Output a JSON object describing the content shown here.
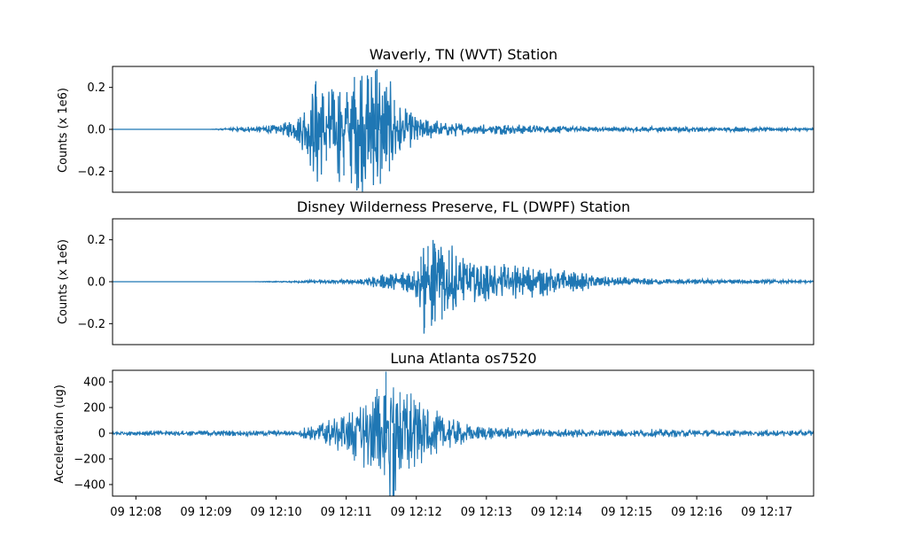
{
  "colors": {
    "trace": "#1f77b4",
    "axes": "#000000",
    "background": "#ffffff"
  },
  "chart_data": [
    {
      "type": "line",
      "title": "Waverly, TN (WVT) Station",
      "ylabel": "Counts (x 1e6)",
      "xlabel": "",
      "ylim": [
        -0.3,
        0.3
      ],
      "yticks": [
        -0.2,
        0.0,
        0.2
      ],
      "ytick_labels": [
        "−0.2",
        "0.0",
        "0.2"
      ],
      "x_unit": "minutes after 12:07:40",
      "x": [
        0.0,
        1.38,
        2.4,
        2.5,
        2.65,
        2.9,
        3.05,
        3.15,
        3.3,
        3.45,
        3.55,
        3.65,
        3.75,
        3.82,
        3.88,
        3.95,
        4.02,
        4.1,
        4.2,
        4.35,
        4.5,
        4.75,
        5.2,
        5.6,
        6.2,
        7.0,
        8.0,
        9.0,
        10.0
      ],
      "values": [
        0.0,
        0.0,
        0.02,
        -0.03,
        0.05,
        0.23,
        -0.15,
        0.18,
        -0.22,
        0.25,
        -0.25,
        0.24,
        0.28,
        -0.26,
        0.18,
        -0.2,
        0.14,
        -0.1,
        0.08,
        -0.05,
        0.04,
        0.03,
        -0.02,
        0.02,
        0.015,
        -0.01,
        0.01,
        0.008,
        0.005
      ],
      "series": [
        {
          "name": "",
          "color": "#1f77b4"
        }
      ]
    },
    {
      "type": "line",
      "title": "Disney Wilderness Preserve, FL (DWPF) Station",
      "ylabel": "Counts (x 1e6)",
      "xlabel": "",
      "ylim": [
        -0.3,
        0.3
      ],
      "yticks": [
        -0.2,
        0.0,
        0.2
      ],
      "ytick_labels": [
        "−0.2",
        "0.0",
        "0.2"
      ],
      "x_unit": "minutes after 12:07:40",
      "x": [
        0.0,
        2.0,
        3.5,
        4.5,
        4.3,
        4.4,
        4.45,
        4.5,
        4.55,
        4.6,
        4.7,
        4.8,
        4.9,
        5.1,
        5.3,
        5.6,
        6.0,
        6.3,
        6.6,
        7.0,
        8.0,
        9.0,
        10.0
      ],
      "values": [
        0.0,
        0.0,
        0.01,
        0.03,
        0.05,
        0.12,
        -0.22,
        0.17,
        -0.21,
        0.16,
        -0.18,
        0.15,
        -0.12,
        0.09,
        -0.08,
        0.07,
        0.06,
        -0.05,
        0.04,
        0.02,
        0.01,
        0.008,
        0.005
      ],
      "series": [
        {
          "name": "",
          "color": "#1f77b4"
        }
      ]
    },
    {
      "type": "line",
      "title": "Luna Atlanta os7520",
      "ylabel": "Acceleration (ug)",
      "xlabel": "",
      "ylim": [
        -490,
        490
      ],
      "yticks": [
        -400,
        -200,
        0,
        200,
        400
      ],
      "ytick_labels": [
        "−400",
        "−200",
        "0",
        "200",
        "400"
      ],
      "xticks": [
        "09 12:08",
        "09 12:09",
        "09 12:10",
        "09 12:11",
        "09 12:12",
        "09 12:13",
        "09 12:14",
        "09 12:15",
        "09 12:16",
        "09 12:17"
      ],
      "x_unit": "minutes after 12:07:40",
      "x": [
        0.0,
        2.3,
        2.6,
        3.0,
        3.3,
        3.8,
        3.9,
        4.0,
        4.1,
        4.3,
        4.5,
        4.8,
        5.2,
        6.0,
        7.0,
        8.0,
        9.0,
        10.0
      ],
      "values": [
        15,
        20,
        15,
        80,
        130,
        290,
        480,
        -490,
        320,
        260,
        170,
        100,
        45,
        30,
        25,
        25,
        20,
        20
      ],
      "series": [
        {
          "name": "",
          "color": "#1f77b4"
        }
      ]
    }
  ]
}
